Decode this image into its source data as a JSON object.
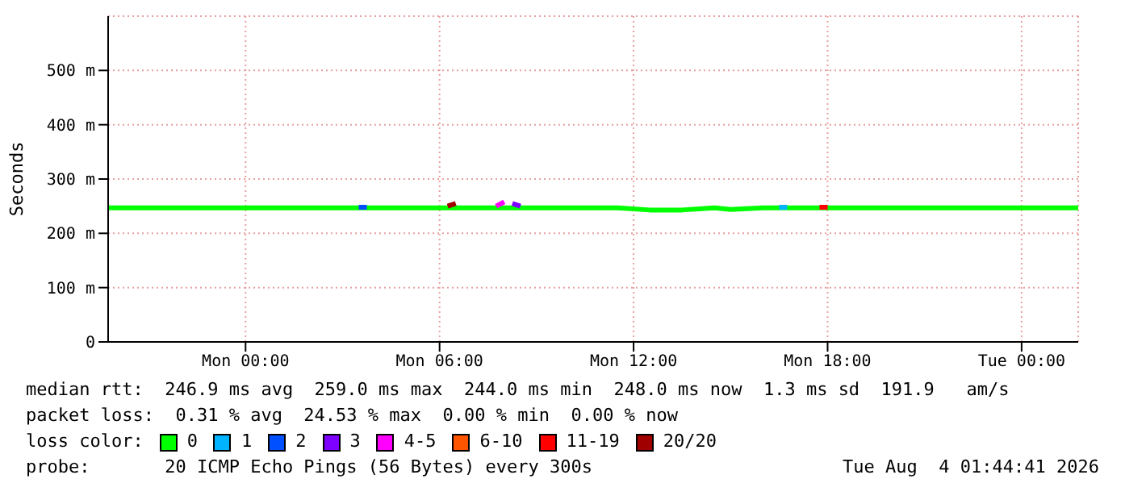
{
  "chart_data": {
    "type": "line",
    "ylabel": "Seconds",
    "legend_title": "loss color:",
    "xlim": [
      "2026-08-02T19:45",
      "2026-08-04T01:45"
    ],
    "xticks": [
      {
        "value": "2026-08-03T00:00",
        "label": "Mon 00:00"
      },
      {
        "value": "2026-08-03T06:00",
        "label": "Mon 06:00"
      },
      {
        "value": "2026-08-03T12:00",
        "label": "Mon 12:00"
      },
      {
        "value": "2026-08-03T18:00",
        "label": "Mon 18:00"
      },
      {
        "value": "2026-08-04T00:00",
        "label": "Tue 00:00"
      }
    ],
    "ylim": [
      0,
      600
    ],
    "yticks": [
      0,
      {
        "value": 100,
        "label": "100 m"
      },
      {
        "value": 200,
        "label": "200 m"
      },
      {
        "value": 300,
        "label": "300 m"
      },
      {
        "value": 400,
        "label": "400 m"
      },
      {
        "value": 500,
        "label": "500 m"
      }
    ],
    "grid": true,
    "legend": "bottom",
    "marker": "none",
    "line_style": "solid",
    "series": [
      {
        "name": "0",
        "color": "#00ff00",
        "x": [
          "2026-08-02T19:45",
          "2026-08-02T22:00",
          "2026-08-03T02:00",
          "2026-08-03T06:00",
          "2026-08-03T09:00",
          "2026-08-03T11:30",
          "2026-08-03T12:30",
          "2026-08-03T13:30",
          "2026-08-03T14:30",
          "2026-08-03T15:00",
          "2026-08-03T16:00",
          "2026-08-03T18:00",
          "2026-08-03T21:00",
          "2026-08-04T01:45"
        ],
        "values": [
          247,
          247,
          247,
          247,
          247,
          247,
          243,
          243,
          247,
          244,
          247,
          247,
          247,
          247
        ]
      },
      {
        "name": "1",
        "color": "#00b4ff",
        "x": [
          "2026-08-03T16:30",
          "2026-08-03T16:45"
        ],
        "values": [
          248,
          248
        ]
      },
      {
        "name": "2",
        "color": "#0050ff",
        "x": [
          "2026-08-03T03:30",
          "2026-08-03T03:45"
        ],
        "values": [
          248,
          248
        ]
      },
      {
        "name": "3",
        "color": "#7e00ff",
        "x": [
          "2026-08-03T08:15",
          "2026-08-03T08:30"
        ],
        "values": [
          255,
          250
        ]
      },
      {
        "name": "4-5",
        "color": "#ff00ff",
        "x": [
          "2026-08-03T07:45",
          "2026-08-03T08:00"
        ],
        "values": [
          250,
          258
        ]
      },
      {
        "name": "6-10",
        "color": "#ff5500"
      },
      {
        "name": "11-19",
        "color": "#ff0000",
        "x": [
          "2026-08-03T17:45",
          "2026-08-03T18:00"
        ],
        "values": [
          248,
          248
        ]
      },
      {
        "name": "20/20",
        "color": "#a10000",
        "x": [
          "2026-08-03T06:15",
          "2026-08-03T06:30"
        ],
        "values": [
          250,
          255
        ]
      }
    ],
    "annotations": [
      "median rtt:  246.9 ms avg  259.0 ms max  244.0 ms min  248.0 ms now  1.3 ms sd  191.9   am/s",
      "packet loss:  0.31 % avg  24.53 % max  0.00 % min  0.00 % now",
      "probe:       20 ICMP Echo Pings (56 Bytes) every 300s",
      "Tue Aug  4 01:44:41 2026"
    ]
  }
}
